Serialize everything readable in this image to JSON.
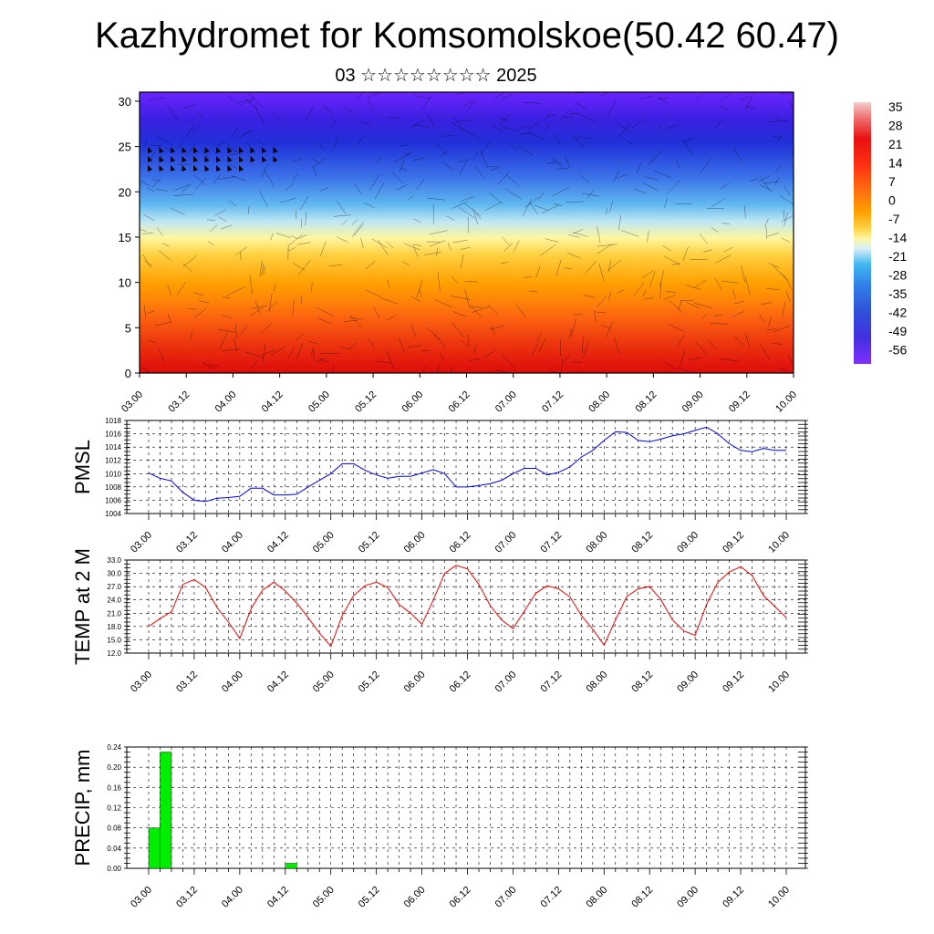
{
  "header": {
    "title": "Kazhydromet for Komsomolskoe(50.42 60.47)",
    "subtitle": "03 ☆☆☆☆☆☆☆☆ 2025"
  },
  "chart_data": [
    {
      "type": "heatmap",
      "name": "vertical-cross-section",
      "x_ticks": [
        "03.00",
        "03.12",
        "04.00",
        "04.12",
        "05.00",
        "05.12",
        "06.00",
        "06.12",
        "07.00",
        "07.12",
        "08.00",
        "08.12",
        "09.00",
        "09.12",
        "10.00"
      ],
      "y_ticks": [
        "0",
        "5",
        "10",
        "15",
        "20",
        "25",
        "30"
      ],
      "ylim": [
        0,
        31
      ],
      "colorbar_labels": [
        "35",
        "28",
        "21",
        "14",
        "7",
        "0",
        "-7",
        "-14",
        "-21",
        "-28",
        "-35",
        "-42",
        "-49",
        "-56"
      ],
      "colors": {
        "hot": "#e81010",
        "warm": "#ff9b00",
        "mild": "#ffe040",
        "cool": "#40b8f0",
        "cold": "#2030d8",
        "frigid": "#6420ff"
      },
      "note_wind_barbs": true
    },
    {
      "type": "line",
      "ylabel": "PMSL",
      "color": "#0000ff",
      "x_ticks": [
        "03.00",
        "03.12",
        "04.00",
        "04.12",
        "05.00",
        "05.12",
        "06.00",
        "06.12",
        "07.00",
        "07.12",
        "08.00",
        "08.12",
        "09.00",
        "09.12",
        "10.00"
      ],
      "y_ticks": [
        "1018",
        "1016",
        "1014",
        "1012",
        "1010",
        "1008",
        "1006",
        "1004"
      ],
      "ylim": [
        1004,
        1018
      ],
      "values": [
        1010.1,
        1009.3,
        1008.9,
        1007.2,
        1006.0,
        1005.8,
        1006.3,
        1006.4,
        1006.6,
        1007.8,
        1007.8,
        1006.8,
        1006.8,
        1006.9,
        1008.0,
        1009.0,
        1010.0,
        1011.5,
        1011.5,
        1010.5,
        1009.8,
        1009.3,
        1009.6,
        1009.6,
        1010.1,
        1010.6,
        1010.0,
        1008.0,
        1008.0,
        1008.2,
        1008.5,
        1009.0,
        1010.0,
        1010.8,
        1010.8,
        1009.8,
        1010.2,
        1011.0,
        1012.5,
        1013.5,
        1015.0,
        1016.3,
        1016.2,
        1015.0,
        1014.8,
        1015.2,
        1015.7,
        1016.0,
        1016.5,
        1017.0,
        1016.0,
        1014.5,
        1013.5,
        1013.3,
        1013.8,
        1013.5,
        1013.5
      ]
    },
    {
      "type": "line",
      "ylabel": "TEMP at 2 M",
      "color": "#ff0000",
      "x_ticks": [
        "03.00",
        "03.12",
        "04.00",
        "04.12",
        "05.00",
        "05.12",
        "06.00",
        "06.12",
        "07.00",
        "07.12",
        "08.00",
        "08.12",
        "09.00",
        "09.12",
        "10.00"
      ],
      "y_ticks": [
        "33.0",
        "30.0",
        "27.0",
        "24.0",
        "21.0",
        "18.0",
        "15.0",
        "12.0"
      ],
      "ylim": [
        12,
        33
      ],
      "values": [
        18.0,
        19.8,
        21.3,
        27.5,
        28.6,
        26.8,
        22.3,
        19.0,
        15.3,
        22.0,
        26.2,
        28.0,
        26.0,
        23.3,
        20.0,
        16.5,
        13.5,
        20.5,
        25.0,
        27.2,
        28.0,
        26.8,
        23.0,
        21.0,
        18.5,
        24.0,
        30.0,
        31.8,
        31.0,
        27.5,
        22.7,
        19.5,
        17.5,
        21.5,
        25.5,
        27.2,
        26.5,
        24.7,
        20.5,
        17.4,
        13.8,
        19.5,
        24.8,
        26.5,
        27.0,
        24.0,
        19.5,
        17.0,
        16.0,
        23.0,
        28.0,
        30.3,
        31.5,
        29.5,
        25.0,
        22.5,
        20.0
      ]
    },
    {
      "type": "bar",
      "ylabel": "PRECIP, mm",
      "color": "#00ee00",
      "x_ticks": [
        "03.00",
        "03.12",
        "04.00",
        "04.12",
        "05.00",
        "05.12",
        "06.00",
        "06.12",
        "07.00",
        "07.12",
        "08.00",
        "08.12",
        "09.00",
        "09.12",
        "10.00"
      ],
      "y_ticks": [
        "0.24",
        "0.20",
        "0.16",
        "0.12",
        "0.08",
        "0.04",
        "0.00"
      ],
      "ylim": [
        0,
        0.24
      ],
      "values": [
        0.08,
        0.23,
        0,
        0,
        0,
        0,
        0,
        0,
        0,
        0,
        0,
        0,
        0.01,
        0,
        0,
        0,
        0,
        0,
        0,
        0,
        0,
        0,
        0,
        0,
        0,
        0,
        0,
        0,
        0,
        0,
        0,
        0,
        0,
        0,
        0,
        0,
        0,
        0,
        0,
        0,
        0,
        0,
        0,
        0,
        0,
        0,
        0,
        0,
        0,
        0,
        0,
        0,
        0,
        0,
        0,
        0,
        0
      ]
    }
  ]
}
